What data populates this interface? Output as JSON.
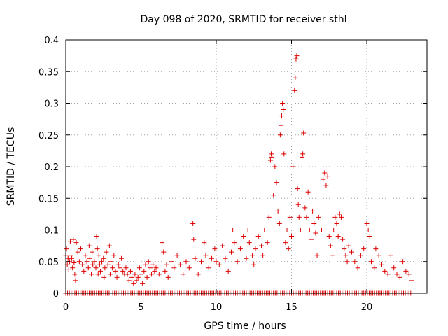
{
  "chart_data": {
    "type": "scatter",
    "title": "Day 098 of 2020, SRMTID for receiver sthl",
    "xlabel": "GPS time / hours",
    "ylabel": "SRMTID / TECUs",
    "xlim": [
      0,
      24
    ],
    "ylim": [
      0,
      0.4
    ],
    "xticks": [
      0,
      5,
      10,
      15,
      20
    ],
    "xtick_labels": [
      "0",
      "5",
      "10",
      "15",
      "20"
    ],
    "yticks": [
      0,
      0.05,
      0.1,
      0.15,
      0.2,
      0.25,
      0.3,
      0.35,
      0.4
    ],
    "ytick_labels": [
      "0",
      "0.05",
      "0.1",
      "0.15",
      "0.2",
      "0.25",
      "0.3",
      "0.35",
      "0.4"
    ],
    "grid": true,
    "marker": "plus",
    "marker_color": "#dd0000",
    "series": [
      {
        "name": "SRMTID",
        "points": [
          [
            0.0,
            0.06
          ],
          [
            0.05,
            0.07
          ],
          [
            0.1,
            0.045
          ],
          [
            0.15,
            0.055
          ],
          [
            0.2,
            0.038
          ],
          [
            0.25,
            0.05
          ],
          [
            0.3,
            0.082
          ],
          [
            0.35,
            0.06
          ],
          [
            0.4,
            0.055
          ],
          [
            0.45,
            0.04
          ],
          [
            0.5,
            0.085
          ],
          [
            0.55,
            0.048
          ],
          [
            0.6,
            0.03
          ],
          [
            0.65,
            0.02
          ],
          [
            0.7,
            0.08
          ],
          [
            0.8,
            0.065
          ],
          [
            0.9,
            0.05
          ],
          [
            1.0,
            0.07
          ],
          [
            1.1,
            0.045
          ],
          [
            1.2,
            0.035
          ],
          [
            1.3,
            0.06
          ],
          [
            1.4,
            0.05
          ],
          [
            1.5,
            0.04
          ],
          [
            1.55,
            0.075
          ],
          [
            1.6,
            0.055
          ],
          [
            1.7,
            0.03
          ],
          [
            1.75,
            0.065
          ],
          [
            1.8,
            0.045
          ],
          [
            1.9,
            0.05
          ],
          [
            2.0,
            0.04
          ],
          [
            2.05,
            0.09
          ],
          [
            2.1,
            0.07
          ],
          [
            2.15,
            0.03
          ],
          [
            2.2,
            0.06
          ],
          [
            2.25,
            0.045
          ],
          [
            2.3,
            0.035
          ],
          [
            2.4,
            0.05
          ],
          [
            2.5,
            0.055
          ],
          [
            2.55,
            0.025
          ],
          [
            2.6,
            0.04
          ],
          [
            2.7,
            0.065
          ],
          [
            2.8,
            0.045
          ],
          [
            2.9,
            0.075
          ],
          [
            2.95,
            0.03
          ],
          [
            3.0,
            0.05
          ],
          [
            3.1,
            0.04
          ],
          [
            3.2,
            0.06
          ],
          [
            3.3,
            0.035
          ],
          [
            3.4,
            0.025
          ],
          [
            3.5,
            0.045
          ],
          [
            3.6,
            0.04
          ],
          [
            3.7,
            0.055
          ],
          [
            3.8,
            0.035
          ],
          [
            3.9,
            0.03
          ],
          [
            4.0,
            0.04
          ],
          [
            4.1,
            0.03
          ],
          [
            4.2,
            0.02
          ],
          [
            4.3,
            0.035
          ],
          [
            4.4,
            0.025
          ],
          [
            4.5,
            0.015
          ],
          [
            4.6,
            0.03
          ],
          [
            4.7,
            0.02
          ],
          [
            4.8,
            0.025
          ],
          [
            4.9,
            0.04
          ],
          [
            5.0,
            0.03
          ],
          [
            5.1,
            0.015
          ],
          [
            5.2,
            0.035
          ],
          [
            5.3,
            0.045
          ],
          [
            5.4,
            0.025
          ],
          [
            5.5,
            0.05
          ],
          [
            5.6,
            0.04
          ],
          [
            5.7,
            0.03
          ],
          [
            5.8,
            0.045
          ],
          [
            5.9,
            0.035
          ],
          [
            6.0,
            0.04
          ],
          [
            6.2,
            0.03
          ],
          [
            6.4,
            0.08
          ],
          [
            6.5,
            0.065
          ],
          [
            6.6,
            0.035
          ],
          [
            6.7,
            0.045
          ],
          [
            6.8,
            0.025
          ],
          [
            7.0,
            0.05
          ],
          [
            7.2,
            0.04
          ],
          [
            7.4,
            0.06
          ],
          [
            7.6,
            0.045
          ],
          [
            7.8,
            0.03
          ],
          [
            8.0,
            0.05
          ],
          [
            8.2,
            0.04
          ],
          [
            8.4,
            0.1
          ],
          [
            8.45,
            0.11
          ],
          [
            8.5,
            0.085
          ],
          [
            8.6,
            0.055
          ],
          [
            8.8,
            0.03
          ],
          [
            9.0,
            0.05
          ],
          [
            9.2,
            0.08
          ],
          [
            9.3,
            0.06
          ],
          [
            9.5,
            0.04
          ],
          [
            9.7,
            0.055
          ],
          [
            9.9,
            0.07
          ],
          [
            10.0,
            0.05
          ],
          [
            10.2,
            0.045
          ],
          [
            10.4,
            0.075
          ],
          [
            10.6,
            0.055
          ],
          [
            10.8,
            0.035
          ],
          [
            11.0,
            0.065
          ],
          [
            11.1,
            0.1
          ],
          [
            11.2,
            0.08
          ],
          [
            11.4,
            0.05
          ],
          [
            11.6,
            0.07
          ],
          [
            11.8,
            0.09
          ],
          [
            12.0,
            0.055
          ],
          [
            12.1,
            0.1
          ],
          [
            12.2,
            0.08
          ],
          [
            12.4,
            0.06
          ],
          [
            12.5,
            0.045
          ],
          [
            12.6,
            0.07
          ],
          [
            12.8,
            0.09
          ],
          [
            13.0,
            0.075
          ],
          [
            13.1,
            0.06
          ],
          [
            13.2,
            0.1
          ],
          [
            13.4,
            0.08
          ],
          [
            13.5,
            0.12
          ],
          [
            13.6,
            0.21
          ],
          [
            13.65,
            0.22
          ],
          [
            13.7,
            0.215
          ],
          [
            13.8,
            0.155
          ],
          [
            13.9,
            0.2
          ],
          [
            14.0,
            0.175
          ],
          [
            14.1,
            0.13
          ],
          [
            14.2,
            0.11
          ],
          [
            14.25,
            0.25
          ],
          [
            14.3,
            0.265
          ],
          [
            14.35,
            0.28
          ],
          [
            14.4,
            0.3
          ],
          [
            14.45,
            0.29
          ],
          [
            14.5,
            0.22
          ],
          [
            14.6,
            0.08
          ],
          [
            14.7,
            0.1
          ],
          [
            14.8,
            0.07
          ],
          [
            14.9,
            0.12
          ],
          [
            15.0,
            0.09
          ],
          [
            15.1,
            0.2
          ],
          [
            15.2,
            0.32
          ],
          [
            15.25,
            0.34
          ],
          [
            15.3,
            0.37
          ],
          [
            15.35,
            0.375
          ],
          [
            15.4,
            0.165
          ],
          [
            15.45,
            0.14
          ],
          [
            15.5,
            0.12
          ],
          [
            15.6,
            0.1
          ],
          [
            15.7,
            0.215
          ],
          [
            15.75,
            0.22
          ],
          [
            15.8,
            0.253
          ],
          [
            15.9,
            0.135
          ],
          [
            16.0,
            0.12
          ],
          [
            16.1,
            0.16
          ],
          [
            16.2,
            0.1
          ],
          [
            16.3,
            0.085
          ],
          [
            16.4,
            0.13
          ],
          [
            16.5,
            0.11
          ],
          [
            16.6,
            0.095
          ],
          [
            16.7,
            0.06
          ],
          [
            16.8,
            0.12
          ],
          [
            17.0,
            0.1
          ],
          [
            17.1,
            0.18
          ],
          [
            17.2,
            0.19
          ],
          [
            17.3,
            0.17
          ],
          [
            17.4,
            0.185
          ],
          [
            17.5,
            0.09
          ],
          [
            17.6,
            0.075
          ],
          [
            17.7,
            0.06
          ],
          [
            17.8,
            0.1
          ],
          [
            17.9,
            0.12
          ],
          [
            18.0,
            0.11
          ],
          [
            18.1,
            0.09
          ],
          [
            18.2,
            0.125
          ],
          [
            18.3,
            0.12
          ],
          [
            18.4,
            0.085
          ],
          [
            18.5,
            0.07
          ],
          [
            18.6,
            0.06
          ],
          [
            18.7,
            0.05
          ],
          [
            18.8,
            0.075
          ],
          [
            19.0,
            0.065
          ],
          [
            19.2,
            0.05
          ],
          [
            19.4,
            0.04
          ],
          [
            19.6,
            0.06
          ],
          [
            19.8,
            0.07
          ],
          [
            20.0,
            0.11
          ],
          [
            20.1,
            0.1
          ],
          [
            20.2,
            0.09
          ],
          [
            20.3,
            0.05
          ],
          [
            20.5,
            0.04
          ],
          [
            20.6,
            0.07
          ],
          [
            20.8,
            0.06
          ],
          [
            21.0,
            0.045
          ],
          [
            21.2,
            0.035
          ],
          [
            21.4,
            0.03
          ],
          [
            21.6,
            0.06
          ],
          [
            21.8,
            0.04
          ],
          [
            22.0,
            0.03
          ],
          [
            22.2,
            0.025
          ],
          [
            22.4,
            0.05
          ],
          [
            22.6,
            0.035
          ],
          [
            22.8,
            0.03
          ],
          [
            23.0,
            0.02
          ]
        ]
      }
    ],
    "baseline_points": {
      "y": 0,
      "x_start": 0,
      "x_end": 23,
      "step": 0.12
    }
  }
}
